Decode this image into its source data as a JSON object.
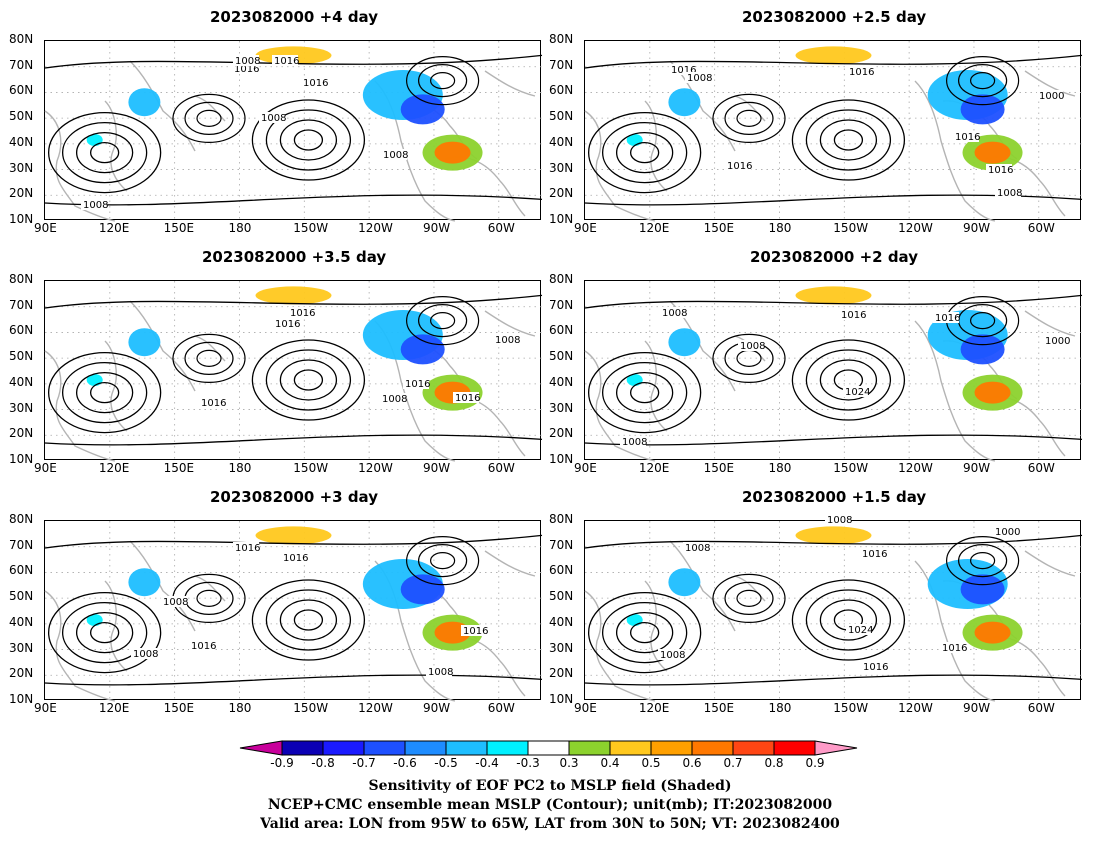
{
  "panels": [
    {
      "title": "2023082000  +4 day",
      "isobars": [
        {
          "text": "1016"
        },
        {
          "text": "1016"
        },
        {
          "text": "1016"
        },
        {
          "text": "1008"
        },
        {
          "text": "1008"
        },
        {
          "text": "1008"
        },
        {
          "text": "1008"
        }
      ]
    },
    {
      "title": "2023082000  +2.5 day",
      "isobars": [
        {
          "text": "1016"
        },
        {
          "text": "1008"
        },
        {
          "text": "1016"
        },
        {
          "text": "1000"
        },
        {
          "text": "1016"
        },
        {
          "text": "1016"
        },
        {
          "text": "1016"
        },
        {
          "text": "1008"
        }
      ]
    },
    {
      "title": "2023082000  +3.5 day",
      "isobars": [
        {
          "text": "1016"
        },
        {
          "text": "1016"
        },
        {
          "text": "1008"
        },
        {
          "text": "1016"
        },
        {
          "text": "1008"
        },
        {
          "text": "1016"
        },
        {
          "text": "1016"
        }
      ]
    },
    {
      "title": "2023082000  +2 day",
      "isobars": [
        {
          "text": "1008"
        },
        {
          "text": "1008"
        },
        {
          "text": "1016"
        },
        {
          "text": "1016"
        },
        {
          "text": "1000"
        },
        {
          "text": "1024"
        },
        {
          "text": "1008"
        }
      ]
    },
    {
      "title": "2023082000  +3 day",
      "isobars": [
        {
          "text": "1016"
        },
        {
          "text": "1016"
        },
        {
          "text": "1008"
        },
        {
          "text": "1016"
        },
        {
          "text": "1008"
        },
        {
          "text": "1016"
        },
        {
          "text": "1008"
        }
      ]
    },
    {
      "title": "2023082000  +1.5 day",
      "isobars": [
        {
          "text": "1008"
        },
        {
          "text": "1008"
        },
        {
          "text": "1000"
        },
        {
          "text": "1016"
        },
        {
          "text": "1024"
        },
        {
          "text": "1016"
        },
        {
          "text": "1016"
        },
        {
          "text": "1008"
        }
      ]
    }
  ],
  "axes": {
    "lat_ticks": [
      "80N",
      "70N",
      "60N",
      "50N",
      "40N",
      "30N",
      "20N",
      "10N"
    ],
    "lon_ticks": [
      "90E",
      "120E",
      "150E",
      "180",
      "150W",
      "120W",
      "90W",
      "60W"
    ]
  },
  "colorbar": {
    "labels": [
      "-0.9",
      "-0.8",
      "-0.7",
      "-0.6",
      "-0.5",
      "-0.4",
      "-0.3",
      "0.3",
      "0.4",
      "0.5",
      "0.6",
      "0.7",
      "0.8",
      "0.9"
    ],
    "colors": [
      "#0b00b4",
      "#1a1aff",
      "#1e50ff",
      "#1e8cff",
      "#1ebeff",
      "#00f0ff",
      "#ffffff",
      "#8cd22d",
      "#ffc81e",
      "#ffa000",
      "#ff7800",
      "#ff4614",
      "#ff0000"
    ],
    "low_end_color": "#c8009b",
    "high_end_color": "#ff9bc8"
  },
  "captions": [
    "Sensitivity of EOF PC2 to MSLP field (Shaded)",
    "NCEP+CMC ensemble mean MSLP (Contour); unit(mb); IT:2023082000",
    "Valid area: LON from 95W to 65W, LAT from 30N to 50N; VT: 2023082400"
  ]
}
